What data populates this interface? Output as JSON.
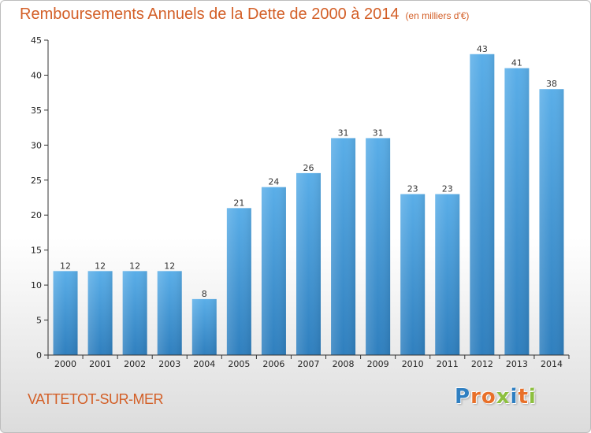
{
  "title": "Remboursements Annuels de la Dette de 2000 à 2014",
  "unit": "(en milliers d'€)",
  "commune": "VATTETOT-SUR-MER",
  "logo": [
    "P",
    "r",
    "o",
    "x",
    "i",
    "t",
    "i"
  ],
  "colors": {
    "title": "#d35f27",
    "bar_top": "#5aaee8",
    "bar_bottom": "#2f7fbe",
    "logo": [
      "#2f7fc1",
      "#e8702a",
      "#e8702a",
      "#8dbf3f",
      "#2f7fc1",
      "#e8702a",
      "#8dbf3f"
    ]
  },
  "chart_data": {
    "type": "bar",
    "title": "Remboursements Annuels de la Dette de 2000 à 2014",
    "categories": [
      "2000",
      "2001",
      "2002",
      "2003",
      "2004",
      "2005",
      "2006",
      "2007",
      "2008",
      "2009",
      "2010",
      "2011",
      "2012",
      "2013",
      "2014"
    ],
    "values": [
      12,
      12,
      12,
      12,
      8,
      21,
      24,
      26,
      31,
      31,
      23,
      23,
      43,
      41,
      38
    ],
    "xlabel": "",
    "ylabel": "",
    "ylim": [
      0,
      45
    ],
    "yticks": [
      0,
      5,
      10,
      15,
      20,
      25,
      30,
      35,
      40,
      45
    ],
    "grid": false,
    "legend": "none"
  }
}
